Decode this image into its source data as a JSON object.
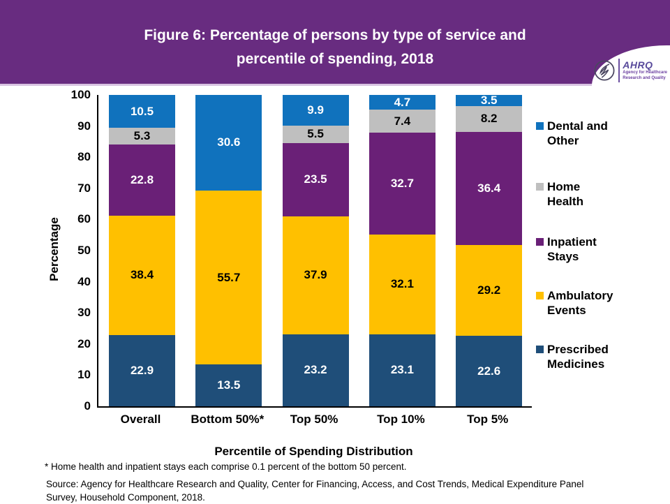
{
  "header": {
    "title_line1": "Figure 6: Percentage of persons by type of service and",
    "title_line2": "percentile of spending, 2018",
    "logo": {
      "org": "AHRQ",
      "tagline_line1": "Agency for Healthcare",
      "tagline_line2": "Research and Quality"
    }
  },
  "chart_data": {
    "type": "bar",
    "stacked": true,
    "title": "Figure 6: Percentage of persons by type of service and percentile of spending, 2018",
    "categories": [
      "Overall",
      "Bottom 50%*",
      "Top 50%",
      "Top 10%",
      "Top 5%"
    ],
    "xlabel": "Percentile of Spending Distribution",
    "ylabel": "Percentage",
    "ylim": [
      0,
      100
    ],
    "yticks": [
      0,
      10,
      20,
      30,
      40,
      50,
      60,
      70,
      80,
      90,
      100
    ],
    "grid": false,
    "legend_position": "right",
    "min_label_value": 1,
    "series": [
      {
        "name": "Prescribed Medicines",
        "color": "#1F4E79",
        "label_color": "#FFFFFF",
        "values": [
          22.9,
          13.5,
          23.2,
          23.1,
          22.6
        ]
      },
      {
        "name": "Ambulatory Events",
        "color": "#FFC000",
        "label_color": "#000000",
        "values": [
          38.4,
          55.7,
          37.9,
          32.1,
          29.2
        ]
      },
      {
        "name": "Inpatient Stays",
        "color": "#6A2077",
        "label_color": "#FFFFFF",
        "values": [
          22.8,
          0.1,
          23.5,
          32.7,
          36.4
        ]
      },
      {
        "name": "Home Health",
        "color": "#BFBFBF",
        "label_color": "#000000",
        "values": [
          5.3,
          0.1,
          5.5,
          7.4,
          8.2
        ]
      },
      {
        "name": "Dental and Other",
        "color": "#1072BD",
        "label_color": "#FFFFFF",
        "values": [
          10.5,
          30.6,
          9.9,
          4.7,
          3.5
        ]
      }
    ]
  },
  "footnote": "* Home health and inpatient stays each comprise 0.1 percent of the bottom 50 percent.",
  "source": "Source: Agency for Healthcare Research and Quality, Center for Financing, Access, and Cost Trends, Medical Expenditure Panel Survey, Household Component, 2018."
}
